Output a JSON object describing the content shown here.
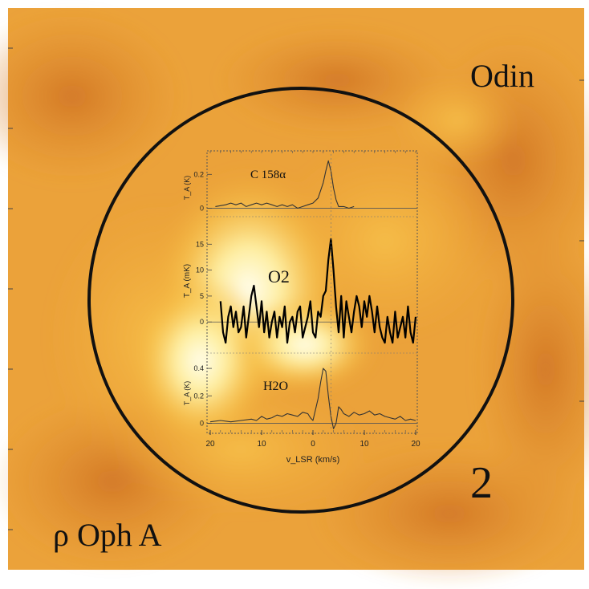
{
  "figure": {
    "telescope_label": "Odin",
    "source_label": "ρ Oph A",
    "beam_number": "2",
    "background_colors": {
      "deep": "#d9822a",
      "mid": "#f2ae3a",
      "bright": "#fff3b0",
      "hot": "#fffde8"
    },
    "beam_color": "#111111"
  },
  "chart_data": [
    {
      "type": "line",
      "name": "C158α panel",
      "series": [
        {
          "name": "C 158α",
          "stroke": "#333333"
        }
      ],
      "ylabel": "T_A (K)",
      "ytick_labels": [
        "0.2",
        "0"
      ],
      "ylim": [
        -0.05,
        0.32
      ],
      "xlim": [
        -20,
        20
      ],
      "x": [
        -19,
        -17,
        -16,
        -15,
        -14,
        -13,
        -12,
        -11,
        -10,
        -9,
        -8,
        -7,
        -6,
        -5,
        -4,
        -3,
        -2,
        -1,
        0,
        1,
        2,
        2.5,
        3,
        3.5,
        4,
        4.5,
        5,
        6,
        7,
        8
      ],
      "y": [
        0.01,
        0.02,
        0.03,
        0.02,
        0.03,
        0.01,
        0.02,
        0.03,
        0.02,
        0.03,
        0.02,
        0.01,
        0.02,
        0.01,
        0.02,
        0.0,
        0.01,
        0.02,
        0.03,
        0.06,
        0.15,
        0.22,
        0.28,
        0.22,
        0.12,
        0.05,
        0.01,
        0.01,
        0.0,
        0.01
      ]
    },
    {
      "type": "line",
      "name": "O2 panel",
      "series": [
        {
          "name": "O2",
          "stroke": "#000000"
        }
      ],
      "ylabel": "T_A (mK)",
      "ytick_labels": [
        "15",
        "10",
        "5",
        "0"
      ],
      "ylim": [
        -6,
        20
      ],
      "xlim": [
        -20,
        20
      ],
      "x": [
        -18,
        -17.5,
        -17,
        -16.5,
        -16,
        -15.5,
        -15,
        -14.5,
        -14,
        -13.5,
        -13,
        -12.5,
        -12,
        -11.5,
        -11,
        -10.5,
        -10,
        -9.5,
        -9,
        -8.5,
        -8,
        -7.5,
        -7,
        -6.5,
        -6,
        -5.5,
        -5,
        -4.5,
        -4,
        -3.5,
        -3,
        -2.5,
        -2,
        -1.5,
        -1,
        -0.5,
        0,
        0.5,
        1,
        1.5,
        2,
        2.5,
        3,
        3.5,
        4,
        4.5,
        5,
        5.5,
        6,
        6.5,
        7,
        7.5,
        8,
        8.5,
        9,
        9.5,
        10,
        10.5,
        11,
        11.5,
        12,
        12.5,
        13,
        13.5,
        14,
        14.5,
        15,
        15.5,
        16,
        16.5,
        17,
        17.5,
        18,
        18.5,
        19,
        19.5,
        20
      ],
      "y": [
        4,
        -2,
        -4,
        1,
        3,
        -1,
        2,
        -2,
        -1,
        3,
        -3,
        1,
        5,
        7,
        3,
        -1,
        4,
        -2,
        2,
        -3,
        0,
        2,
        -3,
        1,
        -1,
        3,
        -4,
        0,
        1,
        -2,
        2,
        3,
        -3,
        -1,
        1,
        4,
        -2,
        -3,
        2,
        1,
        5,
        6,
        12,
        16,
        10,
        3,
        -2,
        5,
        -3,
        4,
        1,
        -2,
        2,
        5,
        3,
        -1,
        4,
        1,
        5,
        2,
        -2,
        3,
        -1,
        -3,
        -4,
        1,
        -2,
        -4,
        2,
        -3,
        -1,
        1,
        -3,
        3,
        -2,
        -4,
        1
      ]
    },
    {
      "type": "line",
      "name": "H2O panel",
      "series": [
        {
          "name": "H2O",
          "stroke": "#333333"
        }
      ],
      "ylabel": "T_A (K)",
      "ytick_labels": [
        "0.4",
        "0.2",
        "0"
      ],
      "ylim": [
        -0.05,
        0.5
      ],
      "xlim": [
        -20,
        20
      ],
      "x": [
        -20,
        -18,
        -16,
        -14,
        -12,
        -11,
        -10,
        -9,
        -8,
        -7,
        -6,
        -5,
        -4,
        -3,
        -2,
        -1,
        -0.5,
        0,
        0.5,
        1,
        1.5,
        2,
        2.5,
        3,
        3.5,
        4,
        4.5,
        5,
        5.5,
        6,
        7,
        8,
        9,
        10,
        11,
        12,
        13,
        14,
        15,
        16,
        17,
        18,
        19,
        20
      ],
      "y": [
        0.01,
        0.02,
        0.01,
        0.02,
        0.03,
        0.02,
        0.05,
        0.03,
        0.04,
        0.06,
        0.05,
        0.07,
        0.06,
        0.05,
        0.08,
        0.07,
        0.04,
        0.02,
        0.1,
        0.18,
        0.3,
        0.4,
        0.38,
        0.2,
        0.05,
        -0.04,
        0.0,
        0.12,
        0.1,
        0.07,
        0.05,
        0.08,
        0.06,
        0.07,
        0.09,
        0.06,
        0.07,
        0.05,
        0.04,
        0.03,
        0.05,
        0.02,
        0.03,
        0.02
      ]
    }
  ],
  "xaxis": {
    "label": "v_LSR (km/s)",
    "tick_labels": [
      "20",
      "10",
      "0",
      "10",
      "20"
    ],
    "tick_values": [
      -20,
      -10,
      0,
      10,
      20
    ]
  }
}
